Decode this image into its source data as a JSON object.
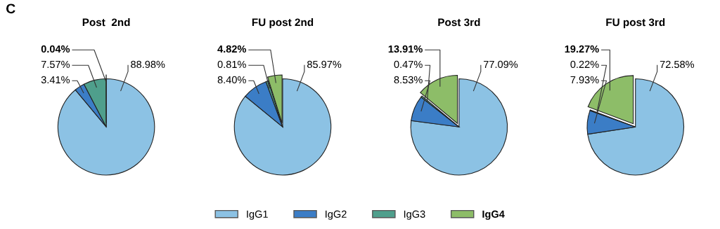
{
  "chart_data": [
    {
      "type": "pie",
      "title": "Post  2nd",
      "annotations": [
        "C"
      ],
      "categories": [
        "IgG1",
        "IgG2",
        "IgG3",
        "IgG4"
      ],
      "values": [
        88.98,
        3.41,
        7.57,
        0.04
      ],
      "value_labels": [
        "88.98%",
        "3.41%",
        "7.57%",
        "0.04%"
      ],
      "colors": [
        "#8cc2e4",
        "#3b7dc6",
        "#4f9f8c",
        "#8dbd68"
      ],
      "legend": "bottom"
    },
    {
      "type": "pie",
      "title": "FU post 2nd",
      "values": [
        85.97,
        8.4,
        0.81,
        4.82
      ],
      "value_labels": [
        "85.97%",
        "8.40%",
        "0.81%",
        "4.82%"
      ],
      "colors": [
        "#8cc2e4",
        "#3b7dc6",
        "#4f9f8c",
        "#8dbd68"
      ]
    },
    {
      "type": "pie",
      "title": "Post 3rd",
      "values": [
        77.09,
        8.53,
        0.47,
        13.91
      ],
      "value_labels": [
        "77.09%",
        "8.53%",
        "0.47%",
        "13.91%"
      ],
      "colors": [
        "#8cc2e4",
        "#3b7dc6",
        "#4f9f8c",
        "#8dbd68"
      ]
    },
    {
      "type": "pie",
      "title": "FU post 3rd",
      "values": [
        72.58,
        7.93,
        0.22,
        19.27
      ],
      "value_labels": [
        "72.58%",
        "7.93%",
        "0.22%",
        "19.27%"
      ],
      "colors": [
        "#8cc2e4",
        "#3b7dc6",
        "#4f9f8c",
        "#8dbd68"
      ]
    }
  ]
}
